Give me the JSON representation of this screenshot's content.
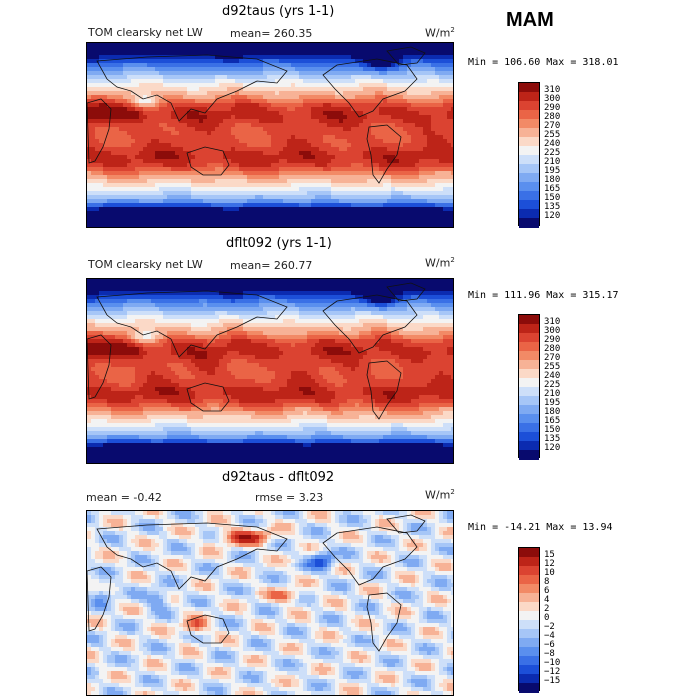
{
  "season": "MAM",
  "panels": [
    {
      "title": "d92taus (yrs 1-1)",
      "field_label": "TOM clearsky net LW",
      "stat_text": "mean=  260.35",
      "units": "W/m",
      "units_sup": "2",
      "minmax": "Min = 106.60 Max = 318.01"
    },
    {
      "title": "dflt092 (yrs 1-1)",
      "field_label": "TOM clearsky net LW",
      "stat_text": "mean=  260.77",
      "units": "W/m",
      "units_sup": "2",
      "minmax": "Min = 111.96 Max = 315.17"
    },
    {
      "title": "d92taus - dflt092",
      "stat_text": "mean =   -0.42",
      "rmse_text": "rmse =    3.23",
      "units": "W/m",
      "units_sup": "2",
      "minmax": "Min = -14.21 Max =  13.94"
    }
  ],
  "chart_data": [
    {
      "type": "heatmap",
      "title": "d92taus (yrs 1-1)",
      "subtitle": "TOM clearsky net LW",
      "units": "W/m2",
      "mean": 260.35,
      "min": 106.6,
      "max": 318.01,
      "colorbar_levels": [
        120,
        135,
        150,
        165,
        180,
        195,
        210,
        225,
        240,
        255,
        270,
        280,
        290,
        300,
        310
      ],
      "colorbar_labels": [
        "310",
        "300",
        "290",
        "280",
        "270",
        "255",
        "240",
        "225",
        "210",
        "195",
        "180",
        "165",
        "150",
        "135",
        "120"
      ],
      "colorbar_colors": [
        "#080a6e",
        "#0b2bb0",
        "#1c4fd8",
        "#3a70e6",
        "#5a8fee",
        "#7faaf2",
        "#a6c6f7",
        "#cddff9",
        "#f3f3f3",
        "#fbd9c7",
        "#f7b296",
        "#f28a66",
        "#ea6446",
        "#db4331",
        "#bd2418",
        "#8c0c0a"
      ]
    },
    {
      "type": "heatmap",
      "title": "dflt092 (yrs 1-1)",
      "subtitle": "TOM clearsky net LW",
      "units": "W/m2",
      "mean": 260.77,
      "min": 111.96,
      "max": 315.17,
      "colorbar_levels": [
        120,
        135,
        150,
        165,
        180,
        195,
        210,
        225,
        240,
        255,
        270,
        280,
        290,
        300,
        310
      ],
      "colorbar_labels": [
        "310",
        "300",
        "290",
        "280",
        "270",
        "255",
        "240",
        "225",
        "210",
        "195",
        "180",
        "165",
        "150",
        "135",
        "120"
      ],
      "colorbar_colors": [
        "#080a6e",
        "#0b2bb0",
        "#1c4fd8",
        "#3a70e6",
        "#5a8fee",
        "#7faaf2",
        "#a6c6f7",
        "#cddff9",
        "#f3f3f3",
        "#fbd9c7",
        "#f7b296",
        "#f28a66",
        "#ea6446",
        "#db4331",
        "#bd2418",
        "#8c0c0a"
      ]
    },
    {
      "type": "heatmap",
      "title": "d92taus - dflt092",
      "units": "W/m2",
      "mean": -0.42,
      "rmse": 3.23,
      "min": -14.21,
      "max": 13.94,
      "colorbar_levels": [
        -15,
        -12,
        -10,
        -8,
        -6,
        -4,
        -2,
        0,
        2,
        4,
        6,
        8,
        10,
        12,
        15
      ],
      "colorbar_labels": [
        "15",
        "12",
        "10",
        "8",
        "6",
        "4",
        "2",
        "0",
        "−2",
        "−4",
        "−6",
        "−8",
        "−10",
        "−12",
        "−15"
      ],
      "colorbar_colors": [
        "#080a6e",
        "#0b2bb0",
        "#1c4fd8",
        "#3a70e6",
        "#5a8fee",
        "#7faaf2",
        "#a6c6f7",
        "#cddff9",
        "#f3f3f3",
        "#fbd9c7",
        "#f7b296",
        "#f28a66",
        "#ea6446",
        "#db4331",
        "#bd2418",
        "#8c0c0a"
      ]
    }
  ]
}
